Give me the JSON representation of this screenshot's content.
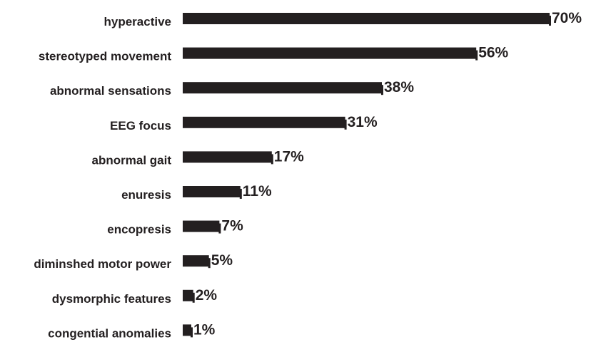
{
  "chart_data": {
    "type": "bar",
    "orientation": "horizontal",
    "categories": [
      "hyperactive",
      "stereotyped movement",
      "abnormal sensations",
      "EEG focus",
      "abnormal gait",
      "enuresis",
      "encopresis",
      "diminshed motor power",
      "dysmorphic features",
      "congential anomalies"
    ],
    "values": [
      70,
      56,
      38,
      31,
      17,
      11,
      7,
      5,
      2,
      1
    ],
    "value_labels": [
      "70%",
      "56%",
      "38%",
      "31%",
      "17%",
      "11%",
      "7%",
      "5%",
      "2%",
      "1%"
    ],
    "unit": "%",
    "xlim": [
      0,
      70
    ],
    "grid": false,
    "legend": "none",
    "colors": {
      "bar": "#231f20",
      "text": "#231f20",
      "background": "#ffffff"
    }
  }
}
